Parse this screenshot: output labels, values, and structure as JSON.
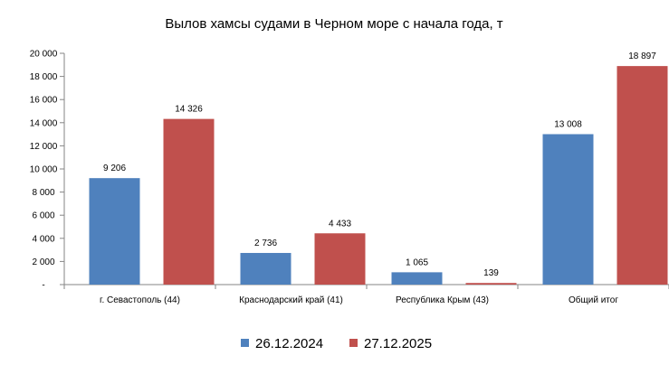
{
  "chart_data": {
    "type": "bar",
    "title": "Вылов хамсы судами в Черном море с начала  года, т",
    "categories": [
      "г. Севастополь (44)",
      "Краснодарский край (41)",
      "Республика Крым (43)",
      "Общий итог"
    ],
    "series": [
      {
        "name": "26.12.2024",
        "values": [
          9206,
          2736,
          1065,
          13008
        ],
        "labels": [
          "9 206",
          "2 736",
          "1 065",
          "13 008"
        ],
        "color": "#4F81BD"
      },
      {
        "name": "27.12.2025",
        "values": [
          14326,
          4433,
          139,
          18897
        ],
        "labels": [
          "14 326",
          "4 433",
          "139",
          "18 897"
        ],
        "color": "#C0504D"
      }
    ],
    "yticks": [
      0,
      2000,
      4000,
      6000,
      8000,
      10000,
      12000,
      14000,
      16000,
      18000,
      20000
    ],
    "ytick_labels": [
      "-",
      "2 000",
      "4 000",
      "6 000",
      "8 000",
      "10 000",
      "12 000",
      "14 000",
      "16 000",
      "18 000",
      "20 000"
    ],
    "ylim": [
      0,
      20000
    ],
    "grid": false,
    "legend_position": "bottom"
  }
}
